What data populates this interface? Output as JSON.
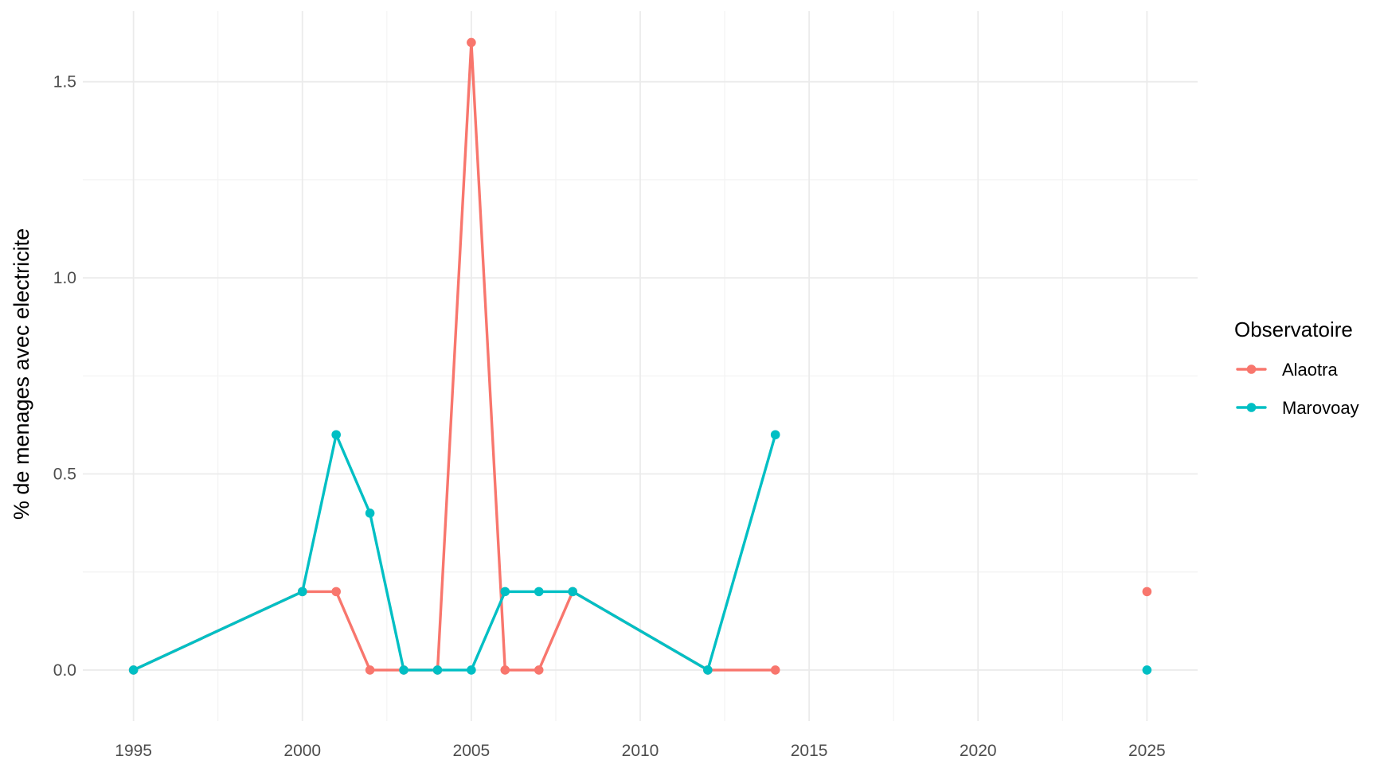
{
  "chart_data": {
    "type": "line",
    "title": "",
    "xlabel": "",
    "ylabel": "% de menages avec electricite",
    "xlim": [
      1993.5,
      2026.5
    ],
    "ylim": [
      -0.13,
      1.68
    ],
    "x_major_ticks": [
      1995,
      2000,
      2005,
      2010,
      2015,
      2020,
      2025
    ],
    "x_minor_ticks": [
      1997.5,
      2002.5,
      2007.5,
      2012.5,
      2017.5,
      2022.5
    ],
    "y_major_ticks": [
      0.0,
      0.5,
      1.0,
      1.5
    ],
    "y_major_tick_labels": [
      "0.0",
      "0.5",
      "1.0",
      "1.5"
    ],
    "y_minor_ticks": [
      0.25,
      0.75,
      1.25
    ],
    "grid": true,
    "legend": {
      "title": "Observatoire",
      "placement": "right"
    },
    "series": [
      {
        "name": "Alaotra",
        "color": "#F8766D",
        "points": [
          {
            "x": 1995,
            "y": 0.0
          },
          {
            "x": 2000,
            "y": 0.2
          },
          {
            "x": 2001,
            "y": 0.2
          },
          {
            "x": 2002,
            "y": 0.0
          },
          {
            "x": 2003,
            "y": 0.0
          },
          {
            "x": 2004,
            "y": 0.0
          },
          {
            "x": 2005,
            "y": 1.6
          },
          {
            "x": 2006,
            "y": 0.0
          },
          {
            "x": 2007,
            "y": 0.0
          },
          {
            "x": 2008,
            "y": 0.2
          },
          {
            "x": 2012,
            "y": 0.0
          },
          {
            "x": 2014,
            "y": 0.0
          },
          {
            "x": 2025,
            "y": 0.2
          }
        ],
        "line_break_after_x": 2014
      },
      {
        "name": "Marovoay",
        "color": "#00BFC4",
        "points": [
          {
            "x": 1995,
            "y": 0.0
          },
          {
            "x": 2000,
            "y": 0.2
          },
          {
            "x": 2001,
            "y": 0.6
          },
          {
            "x": 2002,
            "y": 0.4
          },
          {
            "x": 2003,
            "y": 0.0
          },
          {
            "x": 2004,
            "y": 0.0
          },
          {
            "x": 2005,
            "y": 0.0
          },
          {
            "x": 2006,
            "y": 0.2
          },
          {
            "x": 2007,
            "y": 0.2
          },
          {
            "x": 2008,
            "y": 0.2
          },
          {
            "x": 2012,
            "y": 0.0
          },
          {
            "x": 2014,
            "y": 0.6
          },
          {
            "x": 2025,
            "y": 0.0
          }
        ],
        "line_break_after_x": 2014
      }
    ],
    "colors": {
      "grid_major": "#EBEBEB",
      "grid_minor": "#F3F3F3",
      "tick_text": "#4D4D4D"
    }
  }
}
